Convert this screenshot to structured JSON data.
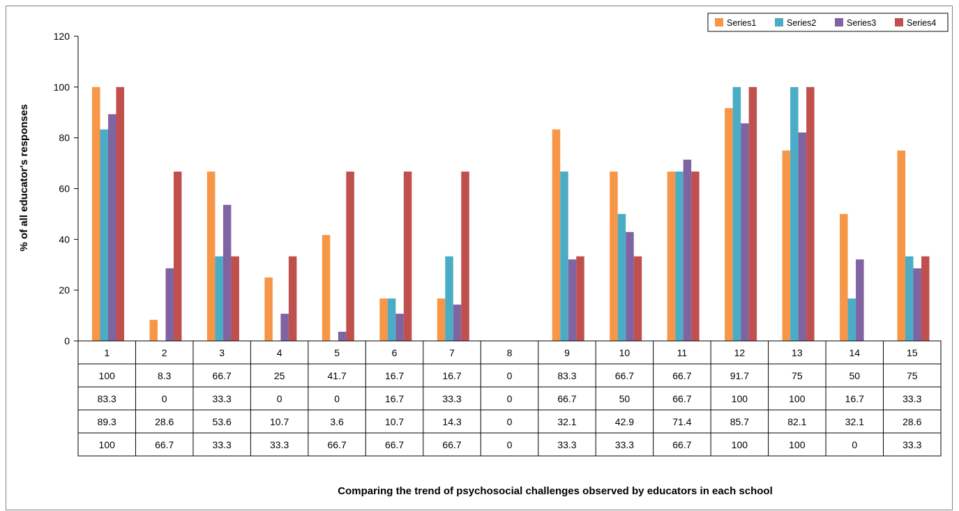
{
  "chart_data": {
    "type": "bar",
    "categories": [
      "1",
      "2",
      "3",
      "4",
      "5",
      "6",
      "7",
      "8",
      "9",
      "10",
      "11",
      "12",
      "13",
      "14",
      "15"
    ],
    "series": [
      {
        "name": "Series1",
        "color": "#F79646",
        "values": [
          100,
          8.3,
          66.7,
          25,
          41.7,
          16.7,
          16.7,
          0,
          83.3,
          66.7,
          66.7,
          91.7,
          75,
          50,
          75
        ]
      },
      {
        "name": "Series2",
        "color": "#4BACC6",
        "values": [
          83.3,
          0,
          33.3,
          0,
          0,
          16.7,
          33.3,
          0,
          66.7,
          50,
          66.7,
          100,
          100,
          16.7,
          33.3
        ]
      },
      {
        "name": "Series3",
        "color": "#8064A2",
        "values": [
          89.3,
          28.6,
          53.6,
          10.7,
          3.6,
          10.7,
          14.3,
          0,
          32.1,
          42.9,
          71.4,
          85.7,
          82.1,
          32.1,
          28.6
        ]
      },
      {
        "name": "Series4",
        "color": "#C0504D",
        "values": [
          100,
          66.7,
          33.3,
          33.3,
          66.7,
          66.7,
          66.7,
          0,
          33.3,
          33.3,
          66.7,
          100,
          100,
          0,
          33.3
        ]
      }
    ],
    "table_rows": [
      [
        "100",
        "8.3",
        "66.7",
        "25",
        "41.7",
        "16.7",
        "16.7",
        "0",
        "83.3",
        "66.7",
        "66.7",
        "91.7",
        "75",
        "50",
        "75"
      ],
      [
        "83.3",
        "0",
        "33.3",
        "0",
        "0",
        "16.7",
        "33.3",
        "0",
        "66.7",
        "50",
        "66.7",
        "100",
        "100",
        "16.7",
        "33.3"
      ],
      [
        "89.3",
        "28.6",
        "53.6",
        "10.7",
        "3.6",
        "10.7",
        "14.3",
        "0",
        "32.1",
        "42.9",
        "71.4",
        "85.7",
        "82.1",
        "32.1",
        "28.6"
      ],
      [
        "100",
        "66.7",
        "33.3",
        "33.3",
        "66.7",
        "66.7",
        "66.7",
        "0",
        "33.3",
        "33.3",
        "66.7",
        "100",
        "100",
        "0",
        "33.3"
      ]
    ],
    "ylabel": "% of all educator's responses",
    "xlabel": "Comparing the trend of psychosocial challenges observed by educators in each school",
    "ylim": [
      0,
      120
    ],
    "yticks": [
      0,
      20,
      40,
      60,
      80,
      100,
      120
    ],
    "legend_position": "top-right",
    "grid": false
  }
}
